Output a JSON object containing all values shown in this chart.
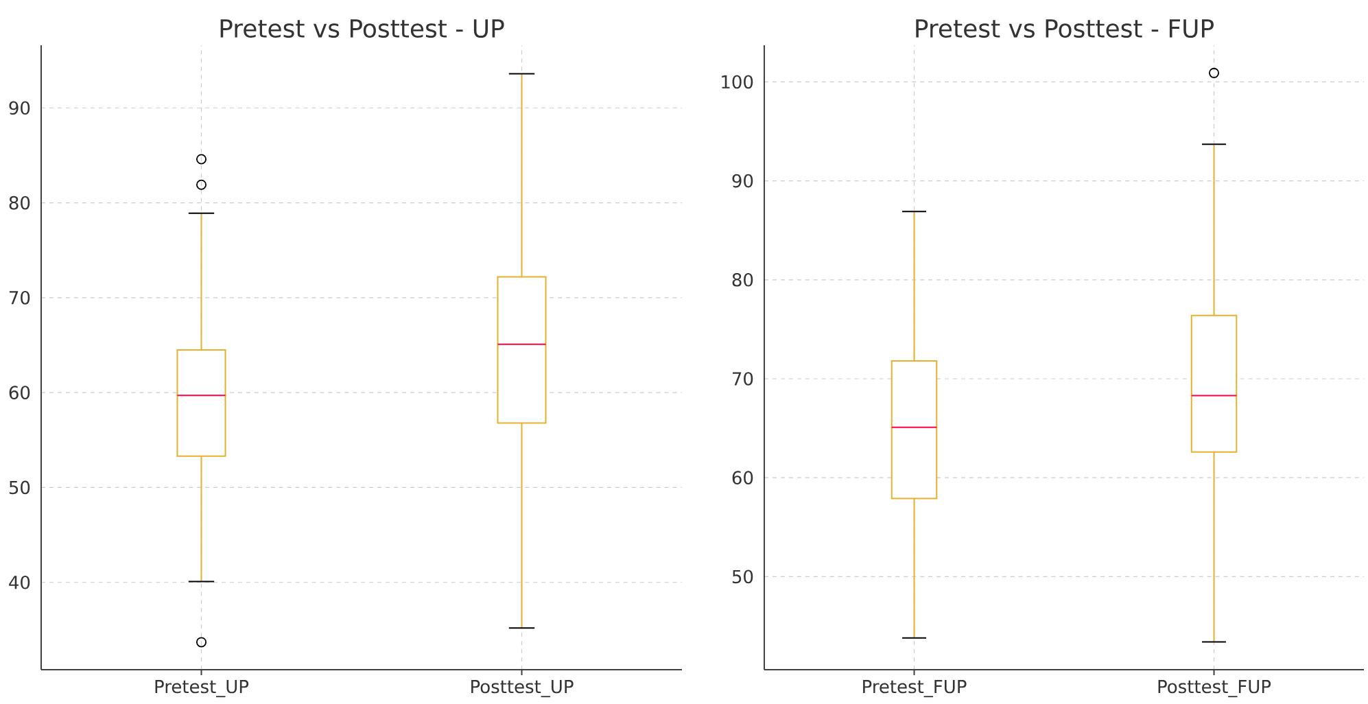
{
  "chart_data": [
    {
      "type": "box",
      "title": "Pretest vs Posttest - UP",
      "categories": [
        "Pretest_UP",
        "Posttest_UP"
      ],
      "series": [
        {
          "color": "#e6b12e",
          "boxes": [
            {
              "low": 40.1,
              "q1": 53.3,
              "median": 59.7,
              "q3": 64.5,
              "high": 78.9,
              "outliers": [
                84.6,
                81.9,
                33.7
              ]
            },
            {
              "low": 35.2,
              "q1": 56.8,
              "median": 65.1,
              "q3": 72.2,
              "high": 93.6
            }
          ]
        }
      ],
      "ylim": [
        30.8,
        96.6
      ],
      "yticks": [
        40,
        50,
        60,
        70,
        80,
        90
      ],
      "grid": true
    },
    {
      "type": "box",
      "title": "Pretest vs Posttest - FUP",
      "categories": [
        "Pretest_FUP",
        "Posttest_FUP"
      ],
      "series": [
        {
          "color": "#e6b12e",
          "boxes": [
            {
              "low": 43.8,
              "q1": 57.9,
              "median": 65.1,
              "q3": 71.8,
              "high": 86.9
            },
            {
              "low": 43.4,
              "q1": 62.6,
              "median": 68.3,
              "q3": 76.4,
              "high": 93.7,
              "outliers": [
                100.9
              ]
            }
          ]
        }
      ],
      "ylim": [
        40.6,
        103.7
      ],
      "yticks": [
        50,
        60,
        70,
        80,
        90,
        100
      ],
      "grid": true
    }
  ]
}
